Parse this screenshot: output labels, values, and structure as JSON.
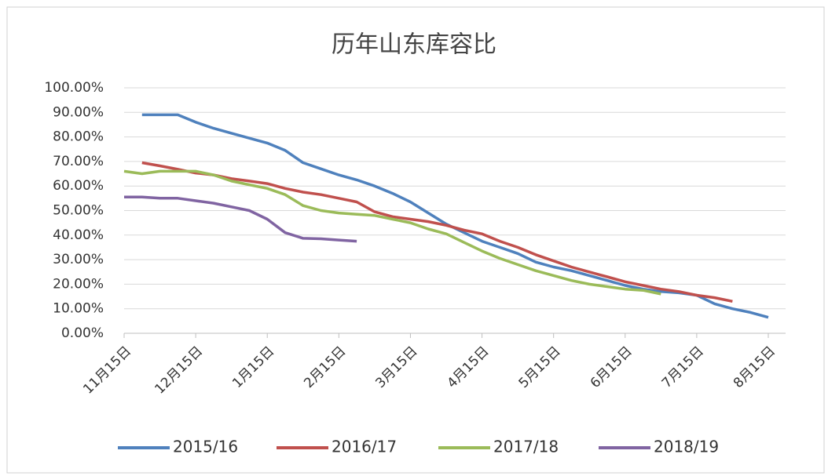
{
  "chart_data": {
    "type": "line",
    "title": "历年山东库容比",
    "categories": [
      "11月15日",
      null,
      null,
      null,
      "12月15日",
      null,
      null,
      null,
      "1月15日",
      null,
      null,
      null,
      "2月15日",
      null,
      null,
      null,
      "3月15日",
      null,
      null,
      null,
      "4月15日",
      null,
      null,
      null,
      "5月15日",
      null,
      null,
      null,
      "6月15日",
      null,
      null,
      null,
      "7月15日",
      null,
      null,
      null,
      "8月15日"
    ],
    "series": [
      {
        "name": "2015/16",
        "color": "#4f81bd",
        "values": [
          null,
          89,
          89,
          89,
          86,
          83.5,
          81.5,
          79.5,
          77.5,
          74.5,
          69.5,
          67,
          64.5,
          62.5,
          60,
          57,
          53.5,
          49,
          44.5,
          41,
          37.5,
          35,
          32.5,
          29,
          27,
          25.5,
          23.5,
          21.5,
          19.5,
          18,
          17,
          16.5,
          15.5,
          12,
          10,
          8.5,
          6.5
        ]
      },
      {
        "name": "2016/17",
        "color": "#c0504d",
        "values": [
          null,
          69.5,
          68.2,
          66.8,
          65.3,
          64.5,
          63,
          62,
          61,
          59,
          57.5,
          56.5,
          55,
          53.5,
          49.5,
          47.5,
          46.5,
          45.5,
          44,
          42,
          40.5,
          37.5,
          35,
          32,
          29.5,
          27,
          25,
          23,
          21,
          19.5,
          18,
          17,
          15.5,
          14.5,
          13,
          null,
          null
        ]
      },
      {
        "name": "2017/18",
        "color": "#9bbb59",
        "values": [
          66,
          65,
          66,
          66,
          66,
          64.5,
          62,
          60.5,
          59,
          56.5,
          52,
          50,
          49,
          48.5,
          48,
          46.5,
          45,
          42.5,
          40.5,
          37,
          33.5,
          30.5,
          28,
          25.5,
          23.5,
          21.5,
          20,
          19,
          18,
          17.5,
          16,
          null,
          null,
          null,
          null,
          null,
          null
        ]
      },
      {
        "name": "2018/19",
        "color": "#8064a2",
        "values": [
          55.5,
          55.5,
          55,
          55,
          54,
          53,
          51.5,
          50,
          46.5,
          41,
          38.7,
          38.5,
          38,
          37.5,
          null,
          null,
          null,
          null,
          null,
          null,
          null,
          null,
          null,
          null,
          null,
          null,
          null,
          null,
          null,
          null,
          null,
          null,
          null,
          null,
          null,
          null,
          null
        ]
      }
    ],
    "ylim": [
      0,
      100
    ],
    "yticks": [
      {
        "value": 0,
        "label": "0.00%"
      },
      {
        "value": 10,
        "label": "10.00%"
      },
      {
        "value": 20,
        "label": "20.00%"
      },
      {
        "value": 30,
        "label": "30.00%"
      },
      {
        "value": 40,
        "label": "40.00%"
      },
      {
        "value": 50,
        "label": "50.00%"
      },
      {
        "value": 60,
        "label": "60.00%"
      },
      {
        "value": 70,
        "label": "70.00%"
      },
      {
        "value": 80,
        "label": "80.00%"
      },
      {
        "value": 90,
        "label": "90.00%"
      },
      {
        "value": 100,
        "label": "100.00%"
      }
    ],
    "grid": true,
    "legend": "bottom"
  }
}
